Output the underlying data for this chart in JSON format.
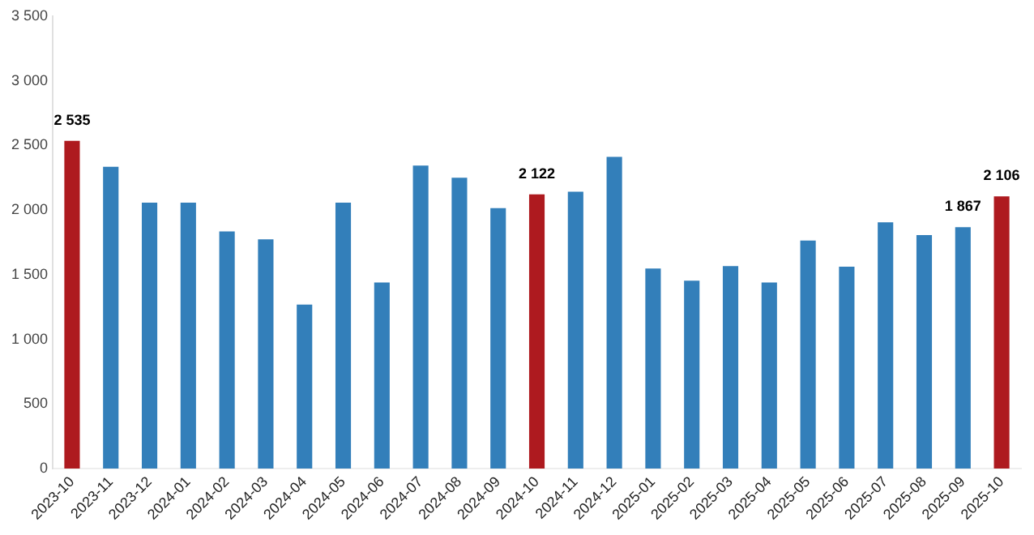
{
  "chart_data": {
    "type": "bar",
    "categories": [
      "2023-10",
      "2023-11",
      "2023-12",
      "2024-01",
      "2024-02",
      "2024-03",
      "2024-04",
      "2024-05",
      "2024-06",
      "2024-07",
      "2024-08",
      "2024-09",
      "2024-10",
      "2024-11",
      "2024-12",
      "2025-01",
      "2025-02",
      "2025-03",
      "2025-04",
      "2025-05",
      "2025-06",
      "2025-07",
      "2025-08",
      "2025-09",
      "2025-10"
    ],
    "values": [
      2535,
      2335,
      2057,
      2057,
      1835,
      1774,
      1269,
      2057,
      1439,
      2345,
      2250,
      2015,
      2122,
      2142,
      2411,
      1548,
      1453,
      1566,
      1439,
      1764,
      1562,
      1906,
      1807,
      1867,
      2106
    ],
    "colors": [
      "#ae1a1f",
      "#337fba",
      "#337fba",
      "#337fba",
      "#337fba",
      "#337fba",
      "#337fba",
      "#337fba",
      "#337fba",
      "#337fba",
      "#337fba",
      "#337fba",
      "#ae1a1f",
      "#337fba",
      "#337fba",
      "#337fba",
      "#337fba",
      "#337fba",
      "#337fba",
      "#337fba",
      "#337fba",
      "#337fba",
      "#337fba",
      "#337fba",
      "#ae1a1f"
    ],
    "value_labels": [
      "2 535",
      null,
      null,
      null,
      null,
      null,
      null,
      null,
      null,
      null,
      null,
      null,
      "2 122",
      null,
      null,
      null,
      null,
      null,
      null,
      null,
      null,
      null,
      null,
      "1 867",
      "2 106"
    ],
    "ylim": [
      0,
      3500
    ],
    "yticks": [
      0,
      500,
      {
        "value": 1000,
        "label": "1 000"
      },
      {
        "value": 1500,
        "label": "1 500"
      },
      {
        "value": 2000,
        "label": "2 000"
      },
      {
        "value": 2500,
        "label": "2 500"
      },
      {
        "value": 3000,
        "label": "3 000"
      },
      {
        "value": 3500,
        "label": "3 500"
      }
    ],
    "grid": false,
    "legend": false
  }
}
